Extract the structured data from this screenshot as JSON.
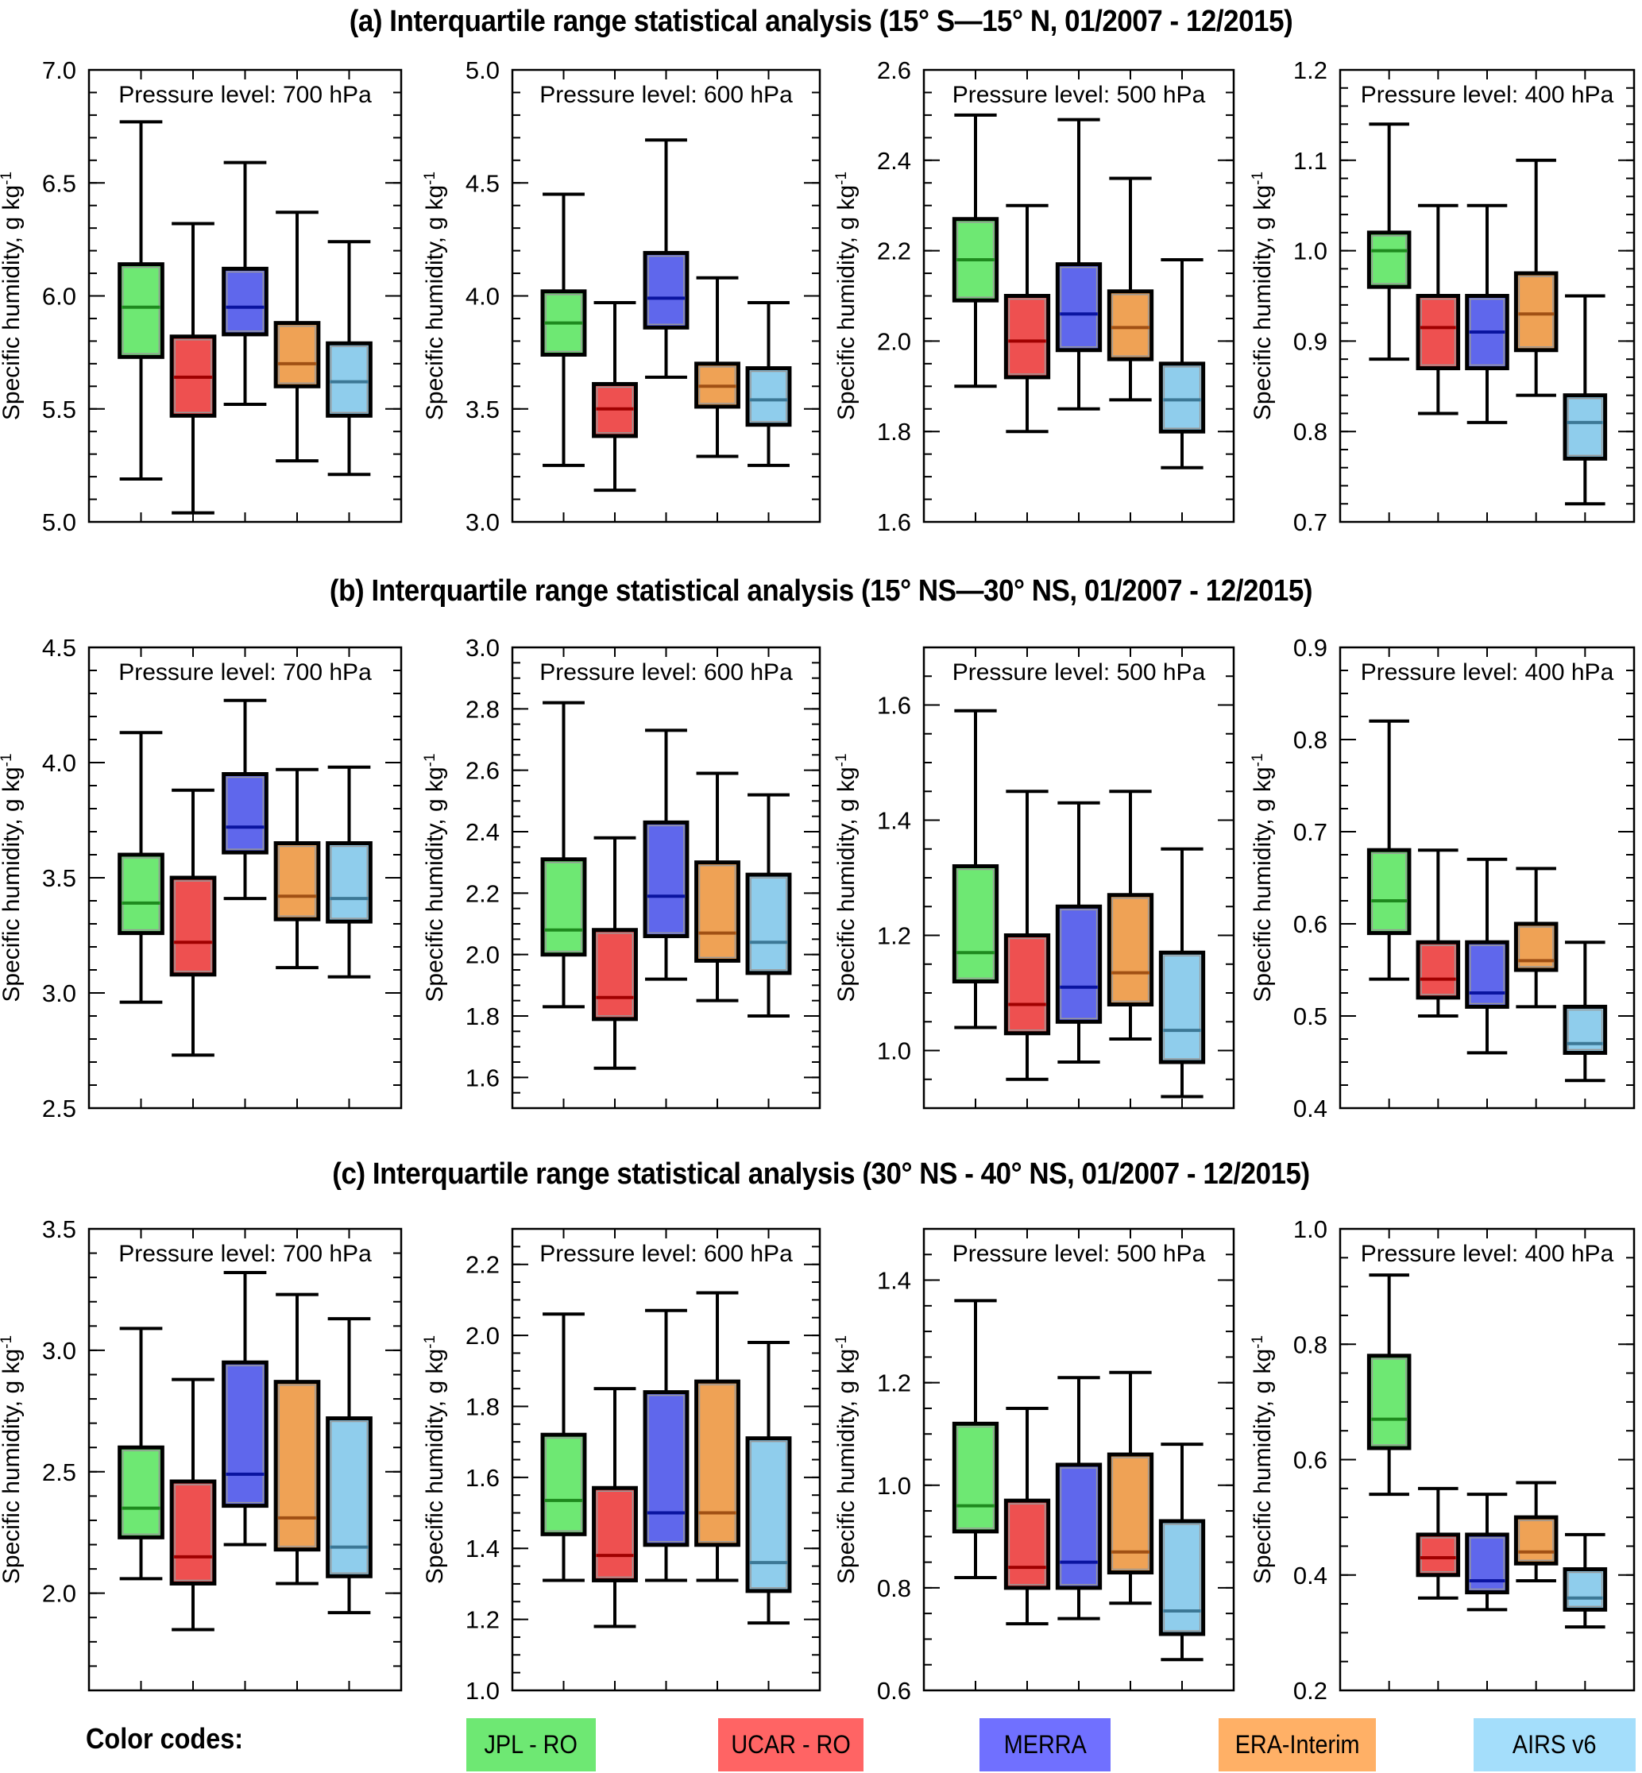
{
  "figure": {
    "row_titles": [
      "(a)  Interquartile range statistical analysis (15° S—15° N, 01/2007 - 12/2015)",
      "(b)  Interquartile range statistical analysis (15° NS—30° NS, 01/2007 - 12/2015)",
      "(c)  Interquartile range statistical analysis (30°  NS - 40° NS, 01/2007 - 12/2015)"
    ],
    "legend": {
      "title": "Color codes:",
      "items": [
        {
          "label": "JPL - RO",
          "color": "#6EE873"
        },
        {
          "label": "UCAR - RO",
          "color": "#FF6464"
        },
        {
          "label": "MERRA",
          "color": "#7070FF"
        },
        {
          "label": "ERA-Interim",
          "color": "#FFB066"
        },
        {
          "label": "AIRS v6",
          "color": "#A4DEFB"
        }
      ]
    }
  },
  "chart_data": [
    {
      "type": "box",
      "row": "a",
      "title": "Pressure level: 700 hPa",
      "ylabel": "Specific humidity, g kg-1",
      "ylim": [
        5.0,
        7.0
      ],
      "yticks": [
        5.0,
        5.5,
        6.0,
        6.5,
        7.0
      ],
      "yminor": 0.1,
      "series": [
        {
          "name": "JPL - RO",
          "min": 5.19,
          "q1": 5.73,
          "median": 5.95,
          "q3": 6.14,
          "max": 6.77
        },
        {
          "name": "UCAR - RO",
          "min": 5.04,
          "q1": 5.47,
          "median": 5.64,
          "q3": 5.82,
          "max": 6.32
        },
        {
          "name": "MERRA",
          "min": 5.52,
          "q1": 5.83,
          "median": 5.95,
          "q3": 6.12,
          "max": 6.59
        },
        {
          "name": "ERA-Interim",
          "min": 5.27,
          "q1": 5.6,
          "median": 5.7,
          "q3": 5.88,
          "max": 6.37
        },
        {
          "name": "AIRS v6",
          "min": 5.21,
          "q1": 5.47,
          "median": 5.62,
          "q3": 5.79,
          "max": 6.24
        }
      ]
    },
    {
      "type": "box",
      "row": "a",
      "title": "Pressure level: 600 hPa",
      "ylabel": "Specific humidity, g kg-1",
      "ylim": [
        3.0,
        5.0
      ],
      "yticks": [
        3.0,
        3.5,
        4.0,
        4.5,
        5.0
      ],
      "yminor": 0.1,
      "series": [
        {
          "name": "JPL - RO",
          "min": 3.25,
          "q1": 3.74,
          "median": 3.88,
          "q3": 4.02,
          "max": 4.45
        },
        {
          "name": "UCAR - RO",
          "min": 3.14,
          "q1": 3.38,
          "median": 3.5,
          "q3": 3.61,
          "max": 3.97
        },
        {
          "name": "MERRA",
          "min": 3.64,
          "q1": 3.86,
          "median": 3.99,
          "q3": 4.19,
          "max": 4.69
        },
        {
          "name": "ERA-Interim",
          "min": 3.29,
          "q1": 3.51,
          "median": 3.6,
          "q3": 3.7,
          "max": 4.08
        },
        {
          "name": "AIRS v6",
          "min": 3.25,
          "q1": 3.43,
          "median": 3.54,
          "q3": 3.68,
          "max": 3.97
        }
      ]
    },
    {
      "type": "box",
      "row": "a",
      "title": "Pressure level: 500 hPa",
      "ylabel": "Specific humidity, g kg-1",
      "ylim": [
        1.6,
        2.6
      ],
      "yticks": [
        1.6,
        1.8,
        2.0,
        2.2,
        2.4,
        2.6
      ],
      "yminor": 0.05,
      "series": [
        {
          "name": "JPL - RO",
          "min": 1.9,
          "q1": 2.09,
          "median": 2.18,
          "q3": 2.27,
          "max": 2.5
        },
        {
          "name": "UCAR - RO",
          "min": 1.8,
          "q1": 1.92,
          "median": 2.0,
          "q3": 2.1,
          "max": 2.3
        },
        {
          "name": "MERRA",
          "min": 1.85,
          "q1": 1.98,
          "median": 2.06,
          "q3": 2.17,
          "max": 2.49
        },
        {
          "name": "ERA-Interim",
          "min": 1.87,
          "q1": 1.96,
          "median": 2.03,
          "q3": 2.11,
          "max": 2.36
        },
        {
          "name": "AIRS v6",
          "min": 1.72,
          "q1": 1.8,
          "median": 1.87,
          "q3": 1.95,
          "max": 2.18
        }
      ]
    },
    {
      "type": "box",
      "row": "a",
      "title": "Pressure level: 400 hPa",
      "ylabel": "Specific humidity, g kg-1",
      "ylim": [
        0.7,
        1.2
      ],
      "yticks": [
        0.7,
        0.8,
        0.9,
        1.0,
        1.1,
        1.2
      ],
      "yminor": 0.02,
      "series": [
        {
          "name": "JPL - RO",
          "min": 0.88,
          "q1": 0.96,
          "median": 1.0,
          "q3": 1.02,
          "max": 1.14
        },
        {
          "name": "UCAR - RO",
          "min": 0.82,
          "q1": 0.87,
          "median": 0.915,
          "q3": 0.95,
          "max": 1.05
        },
        {
          "name": "MERRA",
          "min": 0.81,
          "q1": 0.87,
          "median": 0.91,
          "q3": 0.95,
          "max": 1.05
        },
        {
          "name": "ERA-Interim",
          "min": 0.84,
          "q1": 0.89,
          "median": 0.93,
          "q3": 0.975,
          "max": 1.1
        },
        {
          "name": "AIRS v6",
          "min": 0.72,
          "q1": 0.77,
          "median": 0.81,
          "q3": 0.84,
          "max": 0.95
        }
      ]
    },
    {
      "type": "box",
      "row": "b",
      "title": "Pressure level: 700 hPa",
      "ylabel": "Specific humidity, g kg-1",
      "ylim": [
        2.5,
        4.5
      ],
      "yticks": [
        2.5,
        3.0,
        3.5,
        4.0,
        4.5
      ],
      "yminor": 0.1,
      "series": [
        {
          "name": "JPL - RO",
          "min": 2.96,
          "q1": 3.26,
          "median": 3.39,
          "q3": 3.6,
          "max": 4.13
        },
        {
          "name": "UCAR - RO",
          "min": 2.73,
          "q1": 3.08,
          "median": 3.22,
          "q3": 3.5,
          "max": 3.88
        },
        {
          "name": "MERRA",
          "min": 3.41,
          "q1": 3.61,
          "median": 3.72,
          "q3": 3.95,
          "max": 4.27
        },
        {
          "name": "ERA-Interim",
          "min": 3.11,
          "q1": 3.32,
          "median": 3.42,
          "q3": 3.65,
          "max": 3.97
        },
        {
          "name": "AIRS v6",
          "min": 3.07,
          "q1": 3.31,
          "median": 3.41,
          "q3": 3.65,
          "max": 3.98
        }
      ]
    },
    {
      "type": "box",
      "row": "b",
      "title": "Pressure level: 600 hPa",
      "ylabel": "Specific humidity, g kg-1",
      "ylim": [
        1.5,
        3.0
      ],
      "yticks": [
        1.6,
        1.8,
        2.0,
        2.2,
        2.4,
        2.6,
        2.8,
        3.0
      ],
      "yminor": 0.05,
      "series": [
        {
          "name": "JPL - RO",
          "min": 1.83,
          "q1": 2.0,
          "median": 2.08,
          "q3": 2.31,
          "max": 2.82
        },
        {
          "name": "UCAR - RO",
          "min": 1.63,
          "q1": 1.79,
          "median": 1.86,
          "q3": 2.08,
          "max": 2.38
        },
        {
          "name": "MERRA",
          "min": 1.92,
          "q1": 2.06,
          "median": 2.19,
          "q3": 2.43,
          "max": 2.73
        },
        {
          "name": "ERA-Interim",
          "min": 1.85,
          "q1": 1.98,
          "median": 2.07,
          "q3": 2.3,
          "max": 2.59
        },
        {
          "name": "AIRS v6",
          "min": 1.8,
          "q1": 1.94,
          "median": 2.04,
          "q3": 2.26,
          "max": 2.52
        }
      ]
    },
    {
      "type": "box",
      "row": "b",
      "title": "Pressure level: 500 hPa",
      "ylabel": "Specific humidity, g kg-1",
      "ylim": [
        0.9,
        1.7
      ],
      "yticks": [
        1.0,
        1.2,
        1.4,
        1.6
      ],
      "yminor": 0.05,
      "series": [
        {
          "name": "JPL - RO",
          "min": 1.04,
          "q1": 1.12,
          "median": 1.17,
          "q3": 1.32,
          "max": 1.59
        },
        {
          "name": "UCAR - RO",
          "min": 0.95,
          "q1": 1.03,
          "median": 1.08,
          "q3": 1.2,
          "max": 1.45
        },
        {
          "name": "MERRA",
          "min": 0.98,
          "q1": 1.05,
          "median": 1.11,
          "q3": 1.25,
          "max": 1.43
        },
        {
          "name": "ERA-Interim",
          "min": 1.02,
          "q1": 1.08,
          "median": 1.135,
          "q3": 1.27,
          "max": 1.45
        },
        {
          "name": "AIRS v6",
          "min": 0.92,
          "q1": 0.98,
          "median": 1.035,
          "q3": 1.17,
          "max": 1.35
        }
      ]
    },
    {
      "type": "box",
      "row": "b",
      "title": "Pressure level: 400 hPa",
      "ylabel": "Specific humidity, g kg-1",
      "ylim": [
        0.4,
        0.9
      ],
      "yticks": [
        0.4,
        0.5,
        0.6,
        0.7,
        0.8,
        0.9
      ],
      "yminor": 0.025,
      "series": [
        {
          "name": "JPL - RO",
          "min": 0.54,
          "q1": 0.59,
          "median": 0.625,
          "q3": 0.68,
          "max": 0.82
        },
        {
          "name": "UCAR - RO",
          "min": 0.5,
          "q1": 0.52,
          "median": 0.54,
          "q3": 0.58,
          "max": 0.68
        },
        {
          "name": "MERRA",
          "min": 0.46,
          "q1": 0.51,
          "median": 0.525,
          "q3": 0.58,
          "max": 0.67
        },
        {
          "name": "ERA-Interim",
          "min": 0.51,
          "q1": 0.55,
          "median": 0.56,
          "q3": 0.6,
          "max": 0.66
        },
        {
          "name": "AIRS v6",
          "min": 0.43,
          "q1": 0.46,
          "median": 0.47,
          "q3": 0.51,
          "max": 0.58
        }
      ]
    },
    {
      "type": "box",
      "row": "c",
      "title": "Pressure level: 700 hPa",
      "ylabel": "Specific humidity, g kg-1",
      "ylim": [
        1.6,
        3.5
      ],
      "yticks": [
        2.0,
        2.5,
        3.0,
        3.5
      ],
      "yminor": 0.1,
      "series": [
        {
          "name": "JPL - RO",
          "min": 2.06,
          "q1": 2.23,
          "median": 2.35,
          "q3": 2.6,
          "max": 3.09
        },
        {
          "name": "UCAR - RO",
          "min": 1.85,
          "q1": 2.04,
          "median": 2.15,
          "q3": 2.46,
          "max": 2.88
        },
        {
          "name": "MERRA",
          "min": 2.2,
          "q1": 2.36,
          "median": 2.49,
          "q3": 2.95,
          "max": 3.32
        },
        {
          "name": "ERA-Interim",
          "min": 2.04,
          "q1": 2.18,
          "median": 2.31,
          "q3": 2.87,
          "max": 3.23
        },
        {
          "name": "AIRS v6",
          "min": 1.92,
          "q1": 2.07,
          "median": 2.19,
          "q3": 2.72,
          "max": 3.13
        }
      ]
    },
    {
      "type": "box",
      "row": "c",
      "title": "Pressure level: 600 hPa",
      "ylabel": "Specific humidity, g kg-1",
      "ylim": [
        1.0,
        2.3
      ],
      "yticks": [
        1.0,
        1.2,
        1.4,
        1.6,
        1.8,
        2.0,
        2.2
      ],
      "yminor": 0.05,
      "series": [
        {
          "name": "JPL - RO",
          "min": 1.31,
          "q1": 1.44,
          "median": 1.535,
          "q3": 1.72,
          "max": 2.06
        },
        {
          "name": "UCAR - RO",
          "min": 1.18,
          "q1": 1.31,
          "median": 1.38,
          "q3": 1.57,
          "max": 1.85
        },
        {
          "name": "MERRA",
          "min": 1.31,
          "q1": 1.41,
          "median": 1.5,
          "q3": 1.84,
          "max": 2.07
        },
        {
          "name": "ERA-Interim",
          "min": 1.31,
          "q1": 1.41,
          "median": 1.5,
          "q3": 1.87,
          "max": 2.12
        },
        {
          "name": "AIRS v6",
          "min": 1.19,
          "q1": 1.28,
          "median": 1.36,
          "q3": 1.71,
          "max": 1.98
        }
      ]
    },
    {
      "type": "box",
      "row": "c",
      "title": "Pressure level: 500 hPa",
      "ylabel": "Specific humidity, g kg-1",
      "ylim": [
        0.6,
        1.5
      ],
      "yticks": [
        0.6,
        0.8,
        1.0,
        1.2,
        1.4
      ],
      "yminor": 0.05,
      "series": [
        {
          "name": "JPL - RO",
          "min": 0.82,
          "q1": 0.91,
          "median": 0.96,
          "q3": 1.12,
          "max": 1.36
        },
        {
          "name": "UCAR - RO",
          "min": 0.73,
          "q1": 0.8,
          "median": 0.84,
          "q3": 0.97,
          "max": 1.15
        },
        {
          "name": "MERRA",
          "min": 0.74,
          "q1": 0.8,
          "median": 0.85,
          "q3": 1.04,
          "max": 1.21
        },
        {
          "name": "ERA-Interim",
          "min": 0.77,
          "q1": 0.83,
          "median": 0.87,
          "q3": 1.06,
          "max": 1.22
        },
        {
          "name": "AIRS v6",
          "min": 0.66,
          "q1": 0.71,
          "median": 0.755,
          "q3": 0.93,
          "max": 1.08
        }
      ]
    },
    {
      "type": "box",
      "row": "c",
      "title": "Pressure level: 400 hPa",
      "ylabel": "Specific humidity, g kg-1",
      "ylim": [
        0.2,
        1.0
      ],
      "yticks": [
        0.2,
        0.4,
        0.6,
        0.8,
        1.0
      ],
      "yminor": 0.05,
      "series": [
        {
          "name": "JPL - RO",
          "min": 0.54,
          "q1": 0.62,
          "median": 0.67,
          "q3": 0.78,
          "max": 0.92
        },
        {
          "name": "UCAR - RO",
          "min": 0.36,
          "q1": 0.4,
          "median": 0.43,
          "q3": 0.47,
          "max": 0.55
        },
        {
          "name": "MERRA",
          "min": 0.34,
          "q1": 0.37,
          "median": 0.39,
          "q3": 0.47,
          "max": 0.54
        },
        {
          "name": "ERA-Interim",
          "min": 0.39,
          "q1": 0.42,
          "median": 0.44,
          "q3": 0.5,
          "max": 0.56
        },
        {
          "name": "AIRS v6",
          "min": 0.31,
          "q1": 0.34,
          "median": 0.36,
          "q3": 0.41,
          "max": 0.47
        }
      ]
    }
  ],
  "colors": {
    "box_fill": [
      "#6EE873",
      "#EE5050",
      "#5F67EC",
      "#EFA255",
      "#8FCDEC"
    ],
    "median_line": [
      "#1E8A1E",
      "#A00000",
      "#0A14A0",
      "#A05014",
      "#3C7896"
    ]
  }
}
